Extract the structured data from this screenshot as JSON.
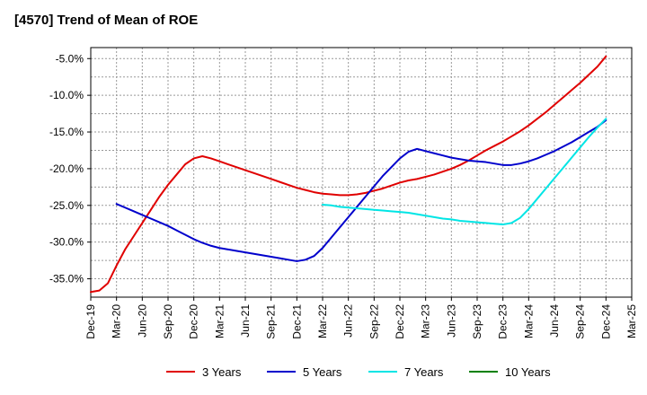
{
  "chart_data": {
    "type": "line",
    "title": "[4570]  Trend of Mean of ROE",
    "xlabel": "",
    "ylabel": "",
    "x_ticks": [
      "Dec-19",
      "Mar-20",
      "Jun-20",
      "Sep-20",
      "Dec-20",
      "Mar-21",
      "Jun-21",
      "Sep-21",
      "Dec-21",
      "Mar-22",
      "Jun-22",
      "Sep-22",
      "Dec-22",
      "Mar-23",
      "Jun-23",
      "Sep-23",
      "Dec-23",
      "Mar-24",
      "Jun-24",
      "Sep-24",
      "Dec-24",
      "Mar-25"
    ],
    "y_ticks": [
      -5.0,
      -10.0,
      -15.0,
      -20.0,
      -25.0,
      -30.0,
      -35.0
    ],
    "y_tick_labels": [
      "-5.0%",
      "-10.0%",
      "-15.0%",
      "-20.0%",
      "-25.0%",
      "-30.0%",
      "-35.0%"
    ],
    "ylim": [
      -37.5,
      -3.5
    ],
    "grid": true,
    "legend_position": "bottom",
    "series": [
      {
        "name": "3 Years",
        "color": "#e00000",
        "points": [
          [
            "Dec-19",
            -36.8
          ],
          [
            "Jan-20",
            -36.6
          ],
          [
            "Feb-20",
            -35.6
          ],
          [
            "Mar-20",
            -33.2
          ],
          [
            "Apr-20",
            -31.0
          ],
          [
            "May-20",
            -29.2
          ],
          [
            "Jun-20",
            -27.4
          ],
          [
            "Jul-20",
            -25.6
          ],
          [
            "Aug-20",
            -23.8
          ],
          [
            "Sep-20",
            -22.2
          ],
          [
            "Oct-20",
            -20.8
          ],
          [
            "Nov-20",
            -19.4
          ],
          [
            "Dec-20",
            -18.6
          ],
          [
            "Jan-21",
            -18.3
          ],
          [
            "Feb-21",
            -18.6
          ],
          [
            "Mar-21",
            -19.0
          ],
          [
            "Apr-21",
            -19.4
          ],
          [
            "May-21",
            -19.8
          ],
          [
            "Jun-21",
            -20.2
          ],
          [
            "Jul-21",
            -20.6
          ],
          [
            "Aug-21",
            -21.0
          ],
          [
            "Sep-21",
            -21.4
          ],
          [
            "Oct-21",
            -21.8
          ],
          [
            "Nov-21",
            -22.2
          ],
          [
            "Dec-21",
            -22.6
          ],
          [
            "Jan-22",
            -22.9
          ],
          [
            "Feb-22",
            -23.2
          ],
          [
            "Mar-22",
            -23.4
          ],
          [
            "Apr-22",
            -23.5
          ],
          [
            "May-22",
            -23.6
          ],
          [
            "Jun-22",
            -23.6
          ],
          [
            "Jul-22",
            -23.5
          ],
          [
            "Aug-22",
            -23.3
          ],
          [
            "Sep-22",
            -23.0
          ],
          [
            "Oct-22",
            -22.7
          ],
          [
            "Nov-22",
            -22.3
          ],
          [
            "Dec-22",
            -21.9
          ],
          [
            "Jan-23",
            -21.6
          ],
          [
            "Feb-23",
            -21.4
          ],
          [
            "Mar-23",
            -21.1
          ],
          [
            "Apr-23",
            -20.8
          ],
          [
            "May-23",
            -20.4
          ],
          [
            "Jun-23",
            -20.0
          ],
          [
            "Jul-23",
            -19.5
          ],
          [
            "Aug-23",
            -18.9
          ],
          [
            "Sep-23",
            -18.2
          ],
          [
            "Oct-23",
            -17.5
          ],
          [
            "Nov-23",
            -16.9
          ],
          [
            "Dec-23",
            -16.3
          ],
          [
            "Jan-24",
            -15.6
          ],
          [
            "Feb-24",
            -14.9
          ],
          [
            "Mar-24",
            -14.1
          ],
          [
            "Apr-24",
            -13.2
          ],
          [
            "May-24",
            -12.3
          ],
          [
            "Jun-24",
            -11.3
          ],
          [
            "Jul-24",
            -10.3
          ],
          [
            "Aug-24",
            -9.3
          ],
          [
            "Sep-24",
            -8.3
          ],
          [
            "Oct-24",
            -7.2
          ],
          [
            "Nov-24",
            -6.1
          ],
          [
            "Dec-24",
            -4.7
          ]
        ]
      },
      {
        "name": "5 Years",
        "color": "#0000cc",
        "points": [
          [
            "Mar-20",
            -24.8
          ],
          [
            "Apr-20",
            -25.3
          ],
          [
            "May-20",
            -25.8
          ],
          [
            "Jun-20",
            -26.3
          ],
          [
            "Jul-20",
            -26.8
          ],
          [
            "Aug-20",
            -27.3
          ],
          [
            "Sep-20",
            -27.8
          ],
          [
            "Oct-20",
            -28.4
          ],
          [
            "Nov-20",
            -29.0
          ],
          [
            "Dec-20",
            -29.6
          ],
          [
            "Jan-21",
            -30.1
          ],
          [
            "Feb-21",
            -30.5
          ],
          [
            "Mar-21",
            -30.8
          ],
          [
            "Apr-21",
            -31.0
          ],
          [
            "May-21",
            -31.2
          ],
          [
            "Jun-21",
            -31.4
          ],
          [
            "Jul-21",
            -31.6
          ],
          [
            "Aug-21",
            -31.8
          ],
          [
            "Sep-21",
            -32.0
          ],
          [
            "Oct-21",
            -32.2
          ],
          [
            "Nov-21",
            -32.4
          ],
          [
            "Dec-21",
            -32.6
          ],
          [
            "Jan-22",
            -32.4
          ],
          [
            "Feb-22",
            -31.9
          ],
          [
            "Mar-22",
            -30.8
          ],
          [
            "Apr-22",
            -29.4
          ],
          [
            "May-22",
            -28.0
          ],
          [
            "Jun-22",
            -26.6
          ],
          [
            "Jul-22",
            -25.2
          ],
          [
            "Aug-22",
            -23.8
          ],
          [
            "Sep-22",
            -22.4
          ],
          [
            "Oct-22",
            -21.0
          ],
          [
            "Nov-22",
            -19.8
          ],
          [
            "Dec-22",
            -18.6
          ],
          [
            "Jan-23",
            -17.7
          ],
          [
            "Feb-23",
            -17.3
          ],
          [
            "Mar-23",
            -17.6
          ],
          [
            "Apr-23",
            -17.9
          ],
          [
            "May-23",
            -18.2
          ],
          [
            "Jun-23",
            -18.5
          ],
          [
            "Jul-23",
            -18.7
          ],
          [
            "Aug-23",
            -18.9
          ],
          [
            "Sep-23",
            -19.0
          ],
          [
            "Oct-23",
            -19.1
          ],
          [
            "Nov-23",
            -19.3
          ],
          [
            "Dec-23",
            -19.5
          ],
          [
            "Jan-24",
            -19.5
          ],
          [
            "Feb-24",
            -19.3
          ],
          [
            "Mar-24",
            -19.0
          ],
          [
            "Apr-24",
            -18.6
          ],
          [
            "May-24",
            -18.1
          ],
          [
            "Jun-24",
            -17.6
          ],
          [
            "Jul-24",
            -17.0
          ],
          [
            "Aug-24",
            -16.4
          ],
          [
            "Sep-24",
            -15.7
          ],
          [
            "Oct-24",
            -15.0
          ],
          [
            "Nov-24",
            -14.3
          ],
          [
            "Dec-24",
            -13.4
          ]
        ]
      },
      {
        "name": "7 Years",
        "color": "#00e5e5",
        "points": [
          [
            "Mar-22",
            -24.9
          ],
          [
            "Apr-22",
            -25.0
          ],
          [
            "May-22",
            -25.2
          ],
          [
            "Jun-22",
            -25.3
          ],
          [
            "Jul-22",
            -25.4
          ],
          [
            "Aug-22",
            -25.5
          ],
          [
            "Sep-22",
            -25.6
          ],
          [
            "Oct-22",
            -25.7
          ],
          [
            "Nov-22",
            -25.8
          ],
          [
            "Dec-22",
            -25.9
          ],
          [
            "Jan-23",
            -26.0
          ],
          [
            "Feb-23",
            -26.2
          ],
          [
            "Mar-23",
            -26.4
          ],
          [
            "Apr-23",
            -26.6
          ],
          [
            "May-23",
            -26.8
          ],
          [
            "Jun-23",
            -26.9
          ],
          [
            "Jul-23",
            -27.1
          ],
          [
            "Aug-23",
            -27.2
          ],
          [
            "Sep-23",
            -27.3
          ],
          [
            "Oct-23",
            -27.4
          ],
          [
            "Nov-23",
            -27.5
          ],
          [
            "Dec-23",
            -27.6
          ],
          [
            "Jan-24",
            -27.4
          ],
          [
            "Feb-24",
            -26.7
          ],
          [
            "Mar-24",
            -25.5
          ],
          [
            "Apr-24",
            -24.1
          ],
          [
            "May-24",
            -22.7
          ],
          [
            "Jun-24",
            -21.3
          ],
          [
            "Jul-24",
            -19.9
          ],
          [
            "Aug-24",
            -18.5
          ],
          [
            "Sep-24",
            -17.1
          ],
          [
            "Oct-24",
            -15.7
          ],
          [
            "Nov-24",
            -14.4
          ],
          [
            "Dec-24",
            -13.2
          ]
        ]
      },
      {
        "name": "10 Years",
        "color": "#008000",
        "points": []
      }
    ]
  }
}
